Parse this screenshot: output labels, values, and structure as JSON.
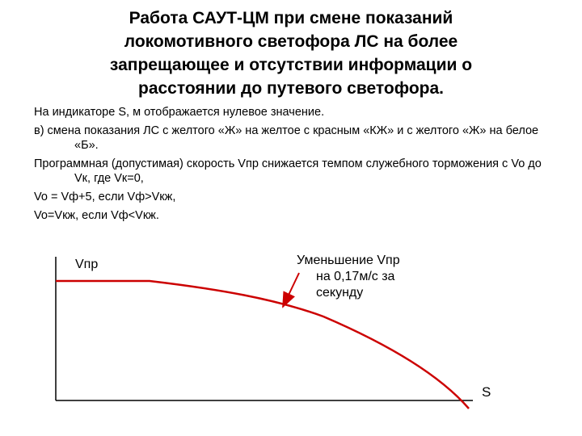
{
  "slide": {
    "title_lines": [
      "Работа САУТ-ЦМ при смене показаний",
      "локомотивного светофора ЛС на более",
      "запрещающее и отсутствии информации о",
      "расстоянии до путевого светофора."
    ],
    "paragraphs": [
      "На индикаторе S, м отображается нулевое значение.",
      "в) смена показания ЛС с желтого «Ж» на желтое с красным «КЖ» и с желтого «Ж» на белое «Б».",
      "Программная (допустимая) скорость Vпр снижается темпом служебного торможения с Vo до Vк, где Vк=0,",
      "Vo = Vф+5, если Vф>Vкж,",
      "Vo=Vкж, если Vф<Vкж."
    ]
  },
  "graph": {
    "y_axis_label": "Vпр",
    "x_axis_label": "S",
    "annotation_lines": [
      "Уменьшение Vпр",
      "на 0,17м/с за",
      "секунду"
    ],
    "curve_color": "#cc0000",
    "arrow_color": "#cc0000",
    "axis_color": "#000000"
  }
}
